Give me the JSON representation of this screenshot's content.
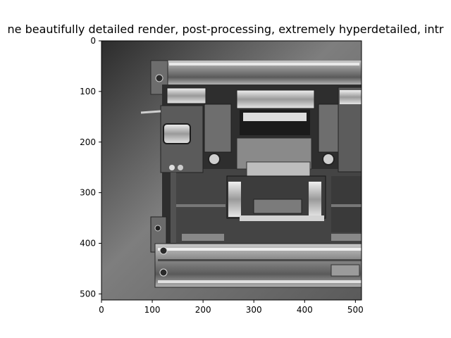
{
  "figure": {
    "title": "ne beautifully detailed render, post-processing, extremely hyperdetailed, intr",
    "image_subject": "grayscale mechanical machine render"
  },
  "axes": {
    "x_ticks": [
      "0",
      "100",
      "200",
      "300",
      "400",
      "500"
    ],
    "y_ticks": [
      "0",
      "100",
      "200",
      "300",
      "400",
      "500"
    ],
    "x_range": [
      0,
      512
    ],
    "y_range": [
      0,
      512
    ]
  },
  "colors": {
    "background": "#ffffff",
    "axis": "#000000",
    "panel_dark": "#3b3b3b",
    "panel_mid": "#707070",
    "metal_light": "#d9d9d9"
  }
}
